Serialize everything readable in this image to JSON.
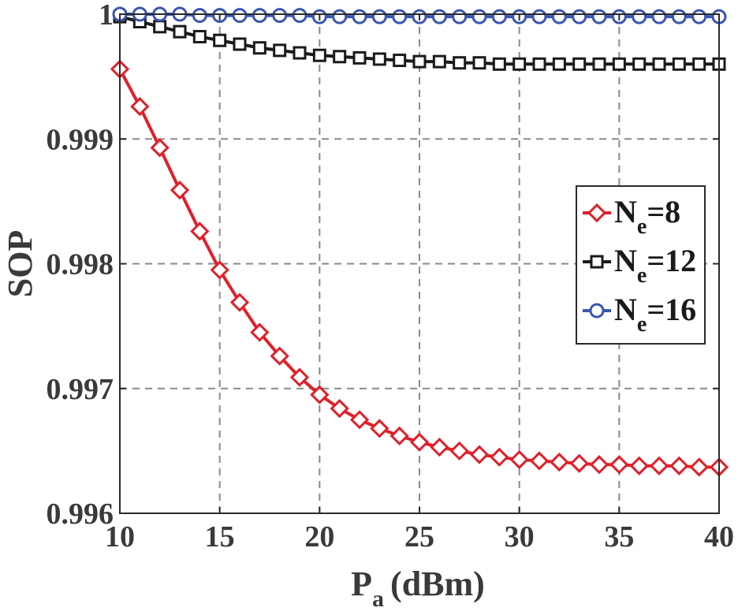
{
  "chart_data": {
    "type": "line",
    "title": "",
    "xlabel_main": "P",
    "xlabel_sub": "a",
    "xlabel_unit": "(dBm)",
    "ylabel": "SOP",
    "xlim": [
      10,
      40
    ],
    "ylim": [
      0.996,
      1.0
    ],
    "xticks": [
      10,
      15,
      20,
      25,
      30,
      35,
      40
    ],
    "xtick_labels": [
      "10",
      "15",
      "20",
      "25",
      "30",
      "35",
      "40"
    ],
    "yticks": [
      0.996,
      0.997,
      0.998,
      0.999,
      1.0
    ],
    "ytick_labels": [
      "0.996",
      "0.997",
      "0.998",
      "0.999",
      "1"
    ],
    "grid": true,
    "legend_position": "center-right",
    "x": [
      10,
      11,
      12,
      13,
      14,
      15,
      16,
      17,
      18,
      19,
      20,
      21,
      22,
      23,
      24,
      25,
      26,
      27,
      28,
      29,
      30,
      31,
      32,
      33,
      34,
      35,
      36,
      37,
      38,
      39,
      40
    ],
    "series": [
      {
        "name": "Ne=8",
        "legend_main": "N",
        "legend_sub": "e",
        "legend_value": "=8",
        "color": "#e0202a",
        "marker": "diamond",
        "values": [
          0.99956,
          0.99926,
          0.99893,
          0.99859,
          0.99826,
          0.99795,
          0.99769,
          0.99745,
          0.99726,
          0.99709,
          0.99695,
          0.99684,
          0.99675,
          0.99668,
          0.99662,
          0.99657,
          0.99653,
          0.9965,
          0.99647,
          0.99645,
          0.99643,
          0.99642,
          0.99641,
          0.9964,
          0.99639,
          0.99639,
          0.99638,
          0.99638,
          0.99638,
          0.99637,
          0.99637
        ]
      },
      {
        "name": "Ne=12",
        "legend_main": "N",
        "legend_sub": "e",
        "legend_value": "=12",
        "color": "#1a1a1a",
        "marker": "square",
        "values": [
          0.99998,
          0.99994,
          0.9999,
          0.99986,
          0.99982,
          0.99979,
          0.99976,
          0.99973,
          0.99971,
          0.99969,
          0.99967,
          0.99966,
          0.99965,
          0.99964,
          0.99963,
          0.99962,
          0.99962,
          0.99961,
          0.99961,
          0.9996,
          0.9996,
          0.9996,
          0.9996,
          0.9996,
          0.9996,
          0.9996,
          0.9996,
          0.9996,
          0.9996,
          0.9996,
          0.9996
        ]
      },
      {
        "name": "Ne=16",
        "legend_main": "N",
        "legend_sub": "e",
        "legend_value": "=16",
        "color": "#3a56b0",
        "marker": "circle",
        "values": [
          1.0,
          1.0,
          1.0,
          1.0,
          0.99999,
          0.99999,
          0.99999,
          0.99999,
          0.99999,
          0.99999,
          0.99998,
          0.99998,
          0.99998,
          0.99998,
          0.99998,
          0.99998,
          0.99998,
          0.99998,
          0.99998,
          0.99998,
          0.99998,
          0.99998,
          0.99998,
          0.99998,
          0.99998,
          0.99998,
          0.99998,
          0.99998,
          0.99998,
          0.99998,
          0.99998
        ]
      }
    ]
  }
}
